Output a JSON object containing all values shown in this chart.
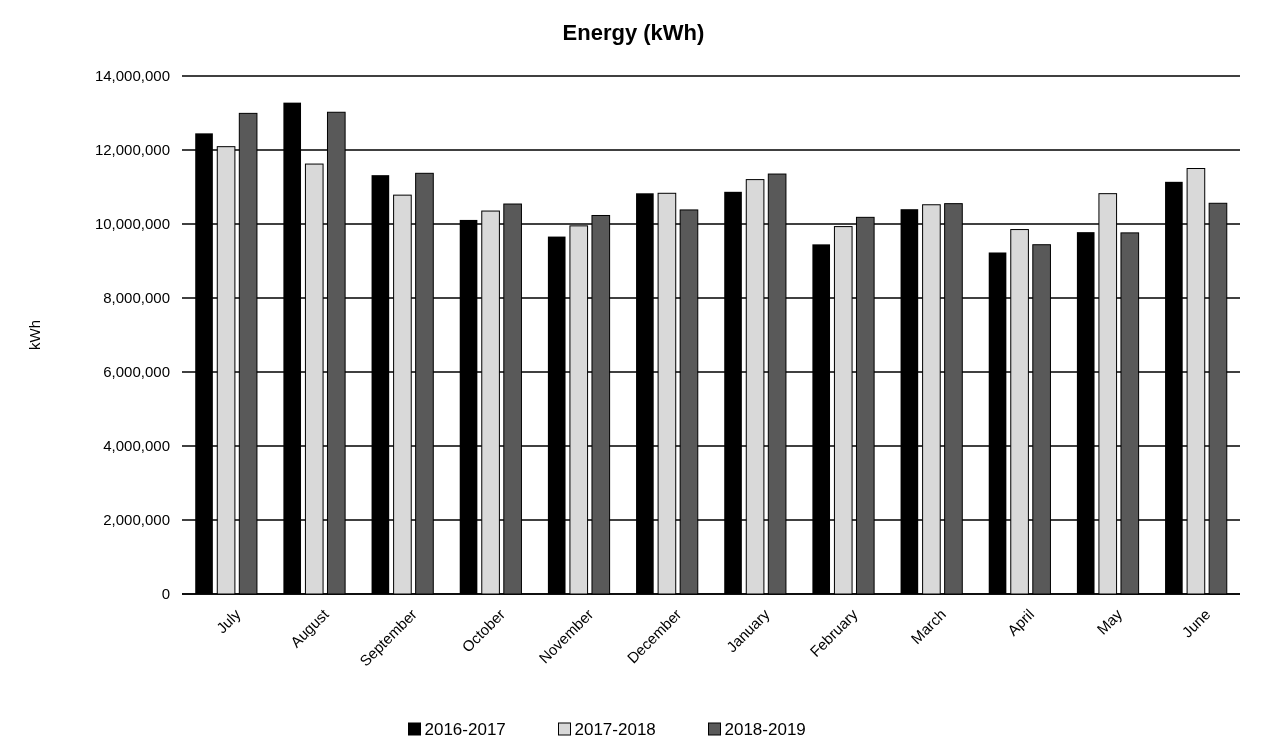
{
  "chart_data": {
    "type": "bar",
    "title": "Energy (kWh)",
    "ylabel": "kWh",
    "categories": [
      "July",
      "August",
      "September",
      "October",
      "November",
      "December",
      "January",
      "February",
      "March",
      "April",
      "May",
      "June"
    ],
    "series": [
      {
        "name": "2016-2017",
        "color": "#000000",
        "values": [
          12450000,
          13280000,
          11320000,
          10110000,
          9660000,
          10830000,
          10870000,
          9450000,
          10400000,
          9230000,
          9780000,
          11140000
        ]
      },
      {
        "name": "2017-2018",
        "color": "#d9d9d9",
        "values": [
          12090000,
          11620000,
          10780000,
          10350000,
          9950000,
          10830000,
          11200000,
          9930000,
          10520000,
          9850000,
          10820000,
          11500000
        ]
      },
      {
        "name": "2018-2019",
        "color": "#595959",
        "values": [
          12990000,
          13020000,
          11370000,
          10540000,
          10230000,
          10380000,
          11350000,
          10180000,
          10550000,
          9440000,
          9760000,
          10560000
        ]
      }
    ],
    "ylim": [
      0,
      14000000
    ],
    "yticks": [
      {
        "value": 0,
        "label": "0"
      },
      {
        "value": 2000000,
        "label": "2,000,000"
      },
      {
        "value": 4000000,
        "label": "4,000,000"
      },
      {
        "value": 6000000,
        "label": "6,000,000"
      },
      {
        "value": 8000000,
        "label": "8,000,000"
      },
      {
        "value": 10000000,
        "label": "10,000,000"
      },
      {
        "value": 12000000,
        "label": "12,000,000"
      },
      {
        "value": 14000000,
        "label": "14,000,000"
      }
    ],
    "grid": "y",
    "legend": "bottom"
  }
}
